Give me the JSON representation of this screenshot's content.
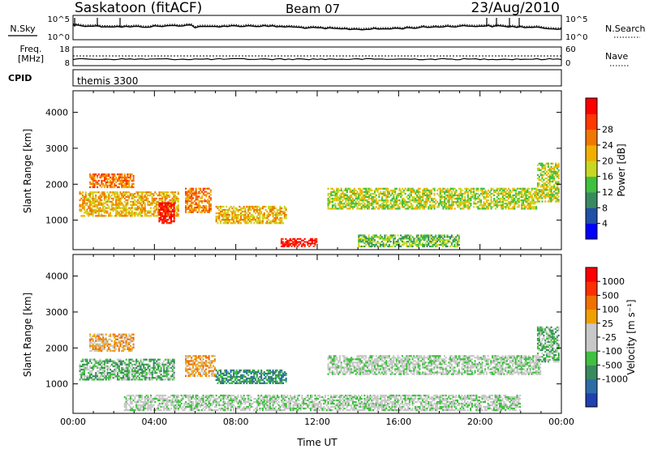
{
  "header": {
    "station": "Saskatoon (fitACF)",
    "beam": "Beam 07",
    "date": "23/Aug/2010"
  },
  "noise_panel": {
    "left_label": "N.Sky",
    "right_label": "N.Search",
    "left_ticks": [
      "10^5",
      "10^0"
    ],
    "right_ticks": [
      "10^5",
      "10^0"
    ]
  },
  "freq_panel": {
    "left_label_1": "Freq.",
    "left_label_2": "[MHz]",
    "left_ticks": [
      "18",
      "8"
    ],
    "right_label": "Nave",
    "right_ticks": [
      "60",
      "0"
    ]
  },
  "cpid_panel": {
    "label": "CPID",
    "value": "themis 3300"
  },
  "colors": {
    "power_scale": [
      "#0000ff",
      "#2050a8",
      "#3a8a60",
      "#40c040",
      "#c8d820",
      "#f0b000",
      "#f07800",
      "#ff3800",
      "#ff0000"
    ],
    "velocity_scale": [
      "#2040b0",
      "#2e6ca8",
      "#3a8a60",
      "#40c040",
      "#c8c8c8",
      "#c8c8c8",
      "#f0a000",
      "#f07000",
      "#ff3000",
      "#ff0000"
    ],
    "ground_scatter": "#c8c8c8"
  },
  "chart_data": [
    {
      "type": "heatmap",
      "name": "power",
      "ylabel": "Slant Range [km]",
      "ylim": [
        180,
        4600
      ],
      "yticks": [
        "1000",
        "2000",
        "3000",
        "4000"
      ],
      "colorbar_label": "Power [dB]",
      "colorbar_ticks": [
        "4",
        "8",
        "12",
        "16",
        "20",
        "24",
        "28"
      ],
      "xlim_hours": [
        0,
        24
      ],
      "scatter_regions": [
        {
          "t0": 0.3,
          "t1": 5.2,
          "r0": 1100,
          "r1": 1800,
          "level": 5
        },
        {
          "t0": 0.8,
          "t1": 3.0,
          "r0": 1900,
          "r1": 2300,
          "level": 6
        },
        {
          "t0": 4.2,
          "t1": 5.0,
          "r0": 900,
          "r1": 1500,
          "level": 8
        },
        {
          "t0": 5.5,
          "t1": 6.8,
          "r0": 1200,
          "r1": 1900,
          "level": 6
        },
        {
          "t0": 7.0,
          "t1": 10.5,
          "r0": 900,
          "r1": 1400,
          "level": 5
        },
        {
          "t0": 10.2,
          "t1": 12.0,
          "r0": 250,
          "r1": 500,
          "level": 8
        },
        {
          "t0": 12.5,
          "t1": 22.8,
          "r0": 1300,
          "r1": 1900,
          "level": 4
        },
        {
          "t0": 14.0,
          "t1": 19.0,
          "r0": 250,
          "r1": 600,
          "level": 3
        },
        {
          "t0": 22.8,
          "t1": 23.9,
          "r0": 1500,
          "r1": 2600,
          "level": 4
        }
      ]
    },
    {
      "type": "heatmap",
      "name": "velocity",
      "ylabel": "Slant Range [km]",
      "ylim": [
        180,
        4600
      ],
      "yticks": [
        "1000",
        "2000",
        "3000",
        "4000"
      ],
      "colorbar_label": "Velocity [m s⁻¹]",
      "colorbar_ticks": [
        "1000",
        "500",
        "100",
        "25",
        "-25",
        "-100",
        "-500",
        "-1000"
      ],
      "xlim_hours": [
        0,
        24
      ],
      "xticks": [
        "00:00",
        "04:00",
        "08:00",
        "12:00",
        "16:00",
        "20:00",
        "00:00"
      ],
      "xlabel": "Time UT",
      "scatter_regions": [
        {
          "t0": 0.3,
          "t1": 5.0,
          "r0": 1100,
          "r1": 1700,
          "level": 3
        },
        {
          "t0": 0.8,
          "t1": 3.0,
          "r0": 1900,
          "r1": 2400,
          "level": 6
        },
        {
          "t0": 5.5,
          "t1": 7.0,
          "r0": 1200,
          "r1": 1800,
          "level": 6
        },
        {
          "t0": 7.0,
          "t1": 10.5,
          "r0": 1000,
          "r1": 1400,
          "level": 2
        },
        {
          "t0": 12.5,
          "t1": 23.0,
          "r0": 1250,
          "r1": 1800,
          "level": 4
        },
        {
          "t0": 2.5,
          "t1": 22.0,
          "r0": 250,
          "r1": 700,
          "level": 4
        },
        {
          "t0": 22.8,
          "t1": 23.9,
          "r0": 1600,
          "r1": 2600,
          "level": 3
        }
      ]
    }
  ]
}
